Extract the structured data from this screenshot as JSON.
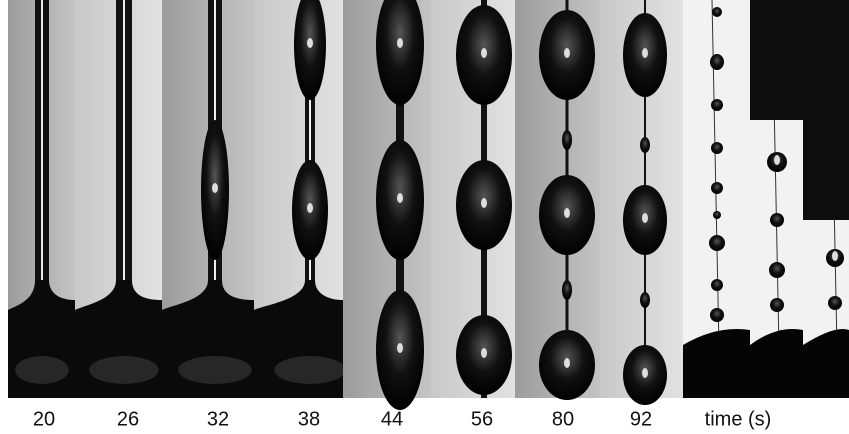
{
  "panels": [
    {
      "label": "20"
    },
    {
      "label": "26"
    },
    {
      "label": "32"
    },
    {
      "label": "38"
    },
    {
      "label": "44"
    },
    {
      "label": "56"
    },
    {
      "label": "80"
    },
    {
      "label": "92"
    }
  ],
  "axis_label": "time (s)"
}
